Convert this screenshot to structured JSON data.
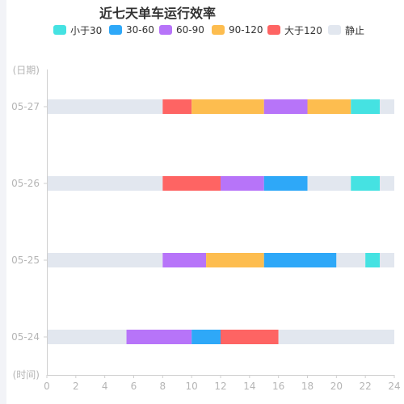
{
  "chart_data": {
    "type": "bar",
    "orientation": "horizontal",
    "title": "近七天单车运行效率",
    "ylabel": "(日期)",
    "xlabel": "(时间)",
    "xlim": [
      0,
      24
    ],
    "x_ticks": [
      0,
      2,
      4,
      6,
      8,
      10,
      12,
      14,
      16,
      18,
      20,
      22,
      24
    ],
    "categories": [
      "05-24",
      "05-25",
      "05-26",
      "05-27"
    ],
    "legend_position": "top",
    "grid": false,
    "legend": [
      {
        "name": "小于30",
        "color": "#45e2e2"
      },
      {
        "name": "30-60",
        "color": "#2ea8f8"
      },
      {
        "name": "60-90",
        "color": "#b774f9"
      },
      {
        "name": "90-120",
        "color": "#fdbd4f"
      },
      {
        "name": "大于120",
        "color": "#fe6463"
      },
      {
        "name": "静止",
        "color": "#e2e7ef"
      }
    ],
    "rows": [
      {
        "date": "05-24",
        "segments": [
          {
            "start": 0,
            "end": 5.5,
            "cls": "静止"
          },
          {
            "start": 5.5,
            "end": 10,
            "cls": "60-90"
          },
          {
            "start": 10,
            "end": 12,
            "cls": "30-60"
          },
          {
            "start": 12,
            "end": 16,
            "cls": "大于120"
          },
          {
            "start": 16,
            "end": 24,
            "cls": "静止"
          }
        ]
      },
      {
        "date": "05-25",
        "segments": [
          {
            "start": 0,
            "end": 8,
            "cls": "静止"
          },
          {
            "start": 8,
            "end": 11,
            "cls": "60-90"
          },
          {
            "start": 11,
            "end": 15,
            "cls": "90-120"
          },
          {
            "start": 15,
            "end": 20,
            "cls": "30-60"
          },
          {
            "start": 20,
            "end": 22,
            "cls": "静止"
          },
          {
            "start": 22,
            "end": 23,
            "cls": "小于30"
          },
          {
            "start": 23,
            "end": 24,
            "cls": "静止"
          }
        ]
      },
      {
        "date": "05-26",
        "segments": [
          {
            "start": 0,
            "end": 8,
            "cls": "静止"
          },
          {
            "start": 8,
            "end": 12,
            "cls": "大于120"
          },
          {
            "start": 12,
            "end": 15,
            "cls": "60-90"
          },
          {
            "start": 15,
            "end": 18,
            "cls": "30-60"
          },
          {
            "start": 18,
            "end": 21,
            "cls": "静止"
          },
          {
            "start": 21,
            "end": 23,
            "cls": "小于30"
          },
          {
            "start": 23,
            "end": 24,
            "cls": "静止"
          }
        ]
      },
      {
        "date": "05-27",
        "segments": [
          {
            "start": 0,
            "end": 8,
            "cls": "静止"
          },
          {
            "start": 8,
            "end": 10,
            "cls": "大于120"
          },
          {
            "start": 10,
            "end": 15,
            "cls": "90-120"
          },
          {
            "start": 15,
            "end": 18,
            "cls": "60-90"
          },
          {
            "start": 18,
            "end": 21,
            "cls": "90-120"
          },
          {
            "start": 21,
            "end": 23,
            "cls": "小于30"
          },
          {
            "start": 23,
            "end": 24,
            "cls": "静止"
          }
        ]
      }
    ]
  }
}
